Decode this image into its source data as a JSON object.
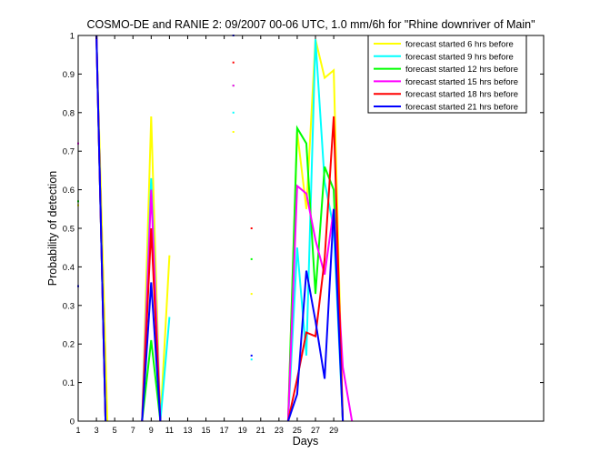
{
  "chart_data": {
    "type": "line",
    "title": "COSMO-DE and RANIE 2: 09/2007 00-06 UTC, 1.0 mm/6h for \"Rhine downriver of Main\"",
    "xlabel": "Days",
    "ylabel": "Probability of detection",
    "xlim": [
      1,
      52
    ],
    "ylim": [
      0,
      1
    ],
    "xticks": [
      1,
      3,
      5,
      7,
      9,
      11,
      13,
      15,
      17,
      19,
      21,
      23,
      25,
      27,
      29
    ],
    "yticks": [
      0,
      0.1,
      0.2,
      0.3,
      0.4,
      0.5,
      0.6,
      0.7,
      0.8,
      0.9,
      1
    ],
    "ytick_labels": [
      "0",
      "0.1",
      "0.2",
      "0.3",
      "0.4",
      "0.5",
      "0.6",
      "0.7",
      "0.8",
      "0.9",
      "1"
    ],
    "grid": false,
    "legend_position": "top-right",
    "series": [
      {
        "name": "forecast started 6 hrs before",
        "color": "#ffff00",
        "segments": [
          [
            [
              3,
              1.0
            ],
            [
              4,
              0.17
            ],
            [
              4.2,
              0.0
            ]
          ],
          [
            [
              8,
              0.0
            ],
            [
              9,
              0.79
            ],
            [
              10,
              0.0
            ],
            [
              11,
              0.43
            ]
          ],
          [
            [
              24,
              0.0
            ],
            [
              25,
              0.75
            ],
            [
              26,
              0.55
            ],
            [
              27,
              0.99
            ],
            [
              28,
              0.89
            ],
            [
              29,
              0.91
            ],
            [
              30,
              0.0
            ]
          ]
        ],
        "dots": [
          [
            1,
            0.56
          ],
          [
            18,
            0.75
          ],
          [
            20,
            0.33
          ]
        ]
      },
      {
        "name": "forecast started 9 hrs before",
        "color": "#00ffff",
        "segments": [
          [
            [
              3,
              1.0
            ],
            [
              4,
              0.0
            ]
          ],
          [
            [
              8,
              0.0
            ],
            [
              9,
              0.63
            ],
            [
              10,
              0.0
            ],
            [
              11,
              0.27
            ]
          ],
          [
            [
              24,
              0.0
            ],
            [
              25,
              0.45
            ],
            [
              26,
              0.17
            ],
            [
              27,
              0.99
            ],
            [
              28,
              0.62
            ],
            [
              29,
              0.5
            ],
            [
              30,
              0.0
            ]
          ]
        ],
        "dots": [
          [
            18,
            0.8
          ],
          [
            20,
            0.16
          ]
        ]
      },
      {
        "name": "forecast started 12 hrs before",
        "color": "#00ff00",
        "segments": [
          [
            [
              3,
              1.0
            ],
            [
              4,
              0.0
            ]
          ],
          [
            [
              8,
              0.0
            ],
            [
              9,
              0.21
            ],
            [
              10,
              0.0
            ]
          ],
          [
            [
              24,
              0.0
            ],
            [
              25,
              0.76
            ],
            [
              26,
              0.72
            ],
            [
              27,
              0.33
            ],
            [
              28,
              0.66
            ],
            [
              29,
              0.6
            ],
            [
              30,
              0.0
            ]
          ]
        ],
        "dots": [
          [
            1,
            0.57
          ],
          [
            18,
            0.87
          ],
          [
            20,
            0.42
          ]
        ]
      },
      {
        "name": "forecast started 15 hrs before",
        "color": "#ff00ff",
        "segments": [
          [
            [
              3,
              1.0
            ],
            [
              4,
              0.0
            ]
          ],
          [
            [
              8,
              0.0
            ],
            [
              9,
              0.6
            ],
            [
              10,
              0.0
            ]
          ],
          [
            [
              24,
              0.0
            ],
            [
              25,
              0.61
            ],
            [
              26,
              0.59
            ],
            [
              27,
              0.47
            ],
            [
              28,
              0.38
            ],
            [
              29,
              0.55
            ],
            [
              30,
              0.14
            ],
            [
              31,
              0.0
            ]
          ]
        ],
        "dots": [
          [
            1,
            0.72
          ],
          [
            18,
            0.87
          ]
        ]
      },
      {
        "name": "forecast started 18 hrs before",
        "color": "#ff0000",
        "segments": [
          [
            [
              3,
              1.0
            ],
            [
              4,
              0.0
            ]
          ],
          [
            [
              8,
              0.0
            ],
            [
              9,
              0.5
            ],
            [
              10,
              0.0
            ]
          ],
          [
            [
              24,
              0.0
            ],
            [
              25,
              0.11
            ],
            [
              26,
              0.23
            ],
            [
              27,
              0.22
            ],
            [
              28,
              0.42
            ],
            [
              29,
              0.79
            ],
            [
              30,
              0.0
            ]
          ]
        ],
        "dots": [
          [
            18,
            0.93
          ],
          [
            20,
            0.5
          ]
        ]
      },
      {
        "name": "forecast started 21 hrs before",
        "color": "#0000ff",
        "segments": [
          [
            [
              3,
              1.0
            ],
            [
              4,
              0.0
            ]
          ],
          [
            [
              8,
              0.0
            ],
            [
              9,
              0.36
            ],
            [
              10,
              0.0
            ]
          ],
          [
            [
              24,
              0.0
            ],
            [
              25,
              0.07
            ],
            [
              26,
              0.39
            ],
            [
              27,
              0.26
            ],
            [
              28,
              0.11
            ],
            [
              29,
              0.55
            ],
            [
              30,
              0.0
            ]
          ]
        ],
        "dots": [
          [
            1,
            0.35
          ],
          [
            18,
            1.0
          ],
          [
            20,
            0.17
          ]
        ]
      }
    ]
  }
}
